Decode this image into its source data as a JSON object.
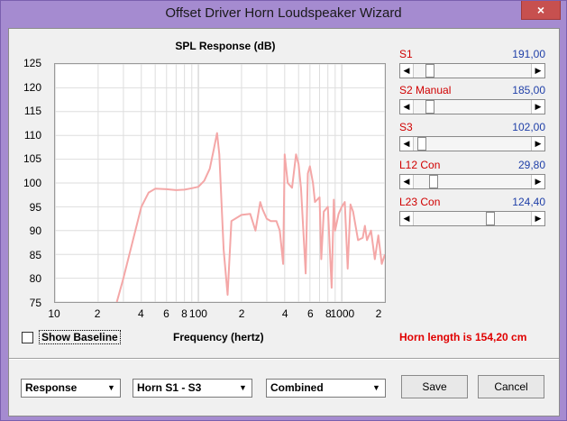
{
  "window": {
    "title": "Offset Driver Horn Loudspeaker Wizard",
    "close_glyph": "×"
  },
  "plot": {
    "title": "SPL Response (dB)",
    "xlabel": "Frequency (hertz)",
    "y_ticks": [
      "125",
      "120",
      "115",
      "110",
      "105",
      "100",
      "95",
      "90",
      "85",
      "80",
      "75"
    ],
    "x_ticks": [
      "10",
      "2",
      "4",
      "6",
      "8",
      "100",
      "2",
      "4",
      "6",
      "8",
      "1000",
      "2"
    ]
  },
  "chart_data": {
    "type": "line",
    "title": "SPL Response (dB)",
    "xlabel": "Frequency (hertz)",
    "ylabel": "",
    "x_scale": "log",
    "xlim": [
      10,
      2000
    ],
    "ylim": [
      75,
      125
    ],
    "grid": true,
    "series": [
      {
        "color": "#f4a7a7",
        "x": [
          27,
          30,
          35,
          40,
          45,
          50,
          60,
          70,
          80,
          90,
          100,
          110,
          120,
          128,
          135,
          140,
          150,
          160,
          170,
          200,
          230,
          250,
          270,
          280,
          300,
          320,
          350,
          370,
          390,
          400,
          420,
          450,
          480,
          500,
          520,
          560,
          580,
          600,
          630,
          650,
          700,
          720,
          750,
          800,
          850,
          880,
          900,
          950,
          1000,
          1050,
          1100,
          1150,
          1200,
          1300,
          1400,
          1450,
          1500,
          1600,
          1700,
          1800,
          1900,
          2000
        ],
        "y": [
          75,
          80,
          88,
          95,
          98,
          98.8,
          98.7,
          98.5,
          98.6,
          98.9,
          99.2,
          100.5,
          103,
          107,
          110.5,
          106,
          86,
          76.5,
          92,
          93.3,
          93.5,
          90,
          96,
          94.5,
          92.5,
          92,
          92,
          90,
          83,
          106,
          100,
          99,
          106,
          104,
          99,
          81,
          102,
          103.5,
          100,
          96,
          97,
          84,
          94,
          95,
          78,
          96.5,
          90,
          93.5,
          95,
          96,
          82,
          95.5,
          94,
          88,
          88.5,
          91,
          88,
          90,
          84,
          89,
          83,
          85
        ]
      }
    ]
  },
  "baseline": {
    "label": "Show Baseline",
    "checked": false
  },
  "horn_length": "Horn length is 154,20 cm",
  "sliders": [
    {
      "name": "S1",
      "value": "191,00",
      "level": 0.11
    },
    {
      "name": "S2  Manual",
      "value": "185,00",
      "level": 0.11
    },
    {
      "name": "S3",
      "value": "102,00",
      "level": 0.03
    },
    {
      "name": "L12  Con",
      "value": "29,80",
      "level": 0.14
    },
    {
      "name": "L23  Con",
      "value": "124,40",
      "level": 0.67
    }
  ],
  "dropdowns": [
    {
      "value": "Response"
    },
    {
      "value": "Horn S1 - S3"
    },
    {
      "value": "Combined"
    }
  ],
  "buttons": {
    "save": "Save",
    "cancel": "Cancel"
  },
  "colors": {
    "accent_red": "#d00000",
    "value_blue": "#1f3fa8",
    "curve": "#f4a7a7"
  }
}
